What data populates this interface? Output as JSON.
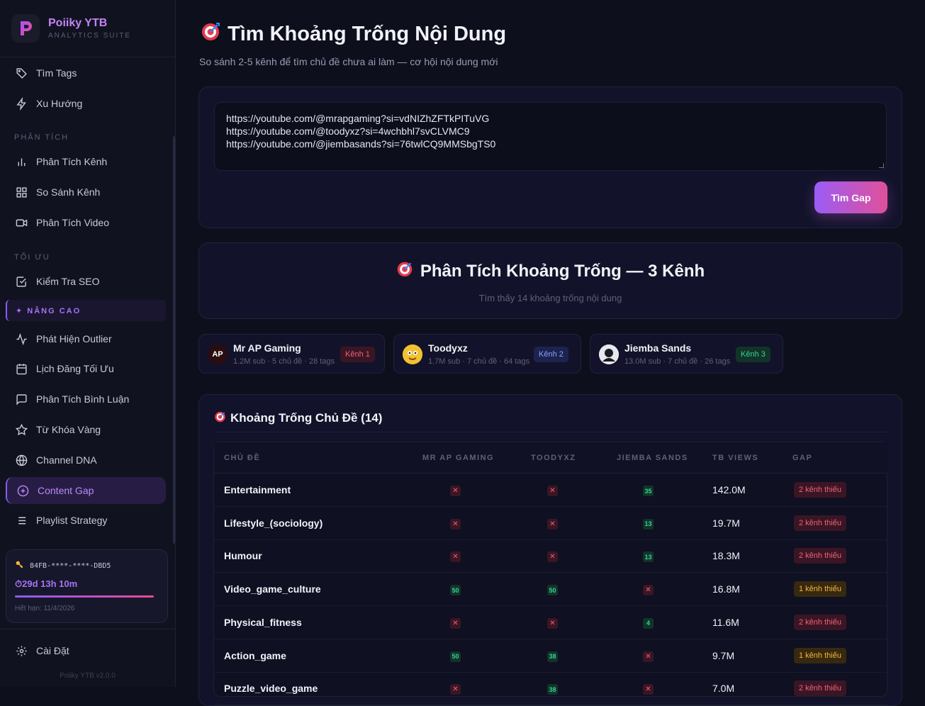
{
  "brand": {
    "name": "Poiiky YTB",
    "subtitle": "ANALYTICS SUITE"
  },
  "sidebar": {
    "top_items": [
      {
        "label": "Tìm Tags",
        "icon": "tag-icon"
      },
      {
        "label": "Xu Hướng",
        "icon": "lightning-icon"
      }
    ],
    "sections": {
      "analysis": "PHÂN TÍCH",
      "optimize": "TỐI ƯU",
      "advanced": "✦ NÂNG CAO"
    },
    "analysis_items": [
      {
        "label": "Phân Tích Kênh",
        "icon": "bar-chart-icon"
      },
      {
        "label": "So Sánh Kênh",
        "icon": "grid-icon"
      },
      {
        "label": "Phân Tích Video",
        "icon": "video-icon"
      }
    ],
    "optimize_items": [
      {
        "label": "Kiểm Tra SEO",
        "icon": "checkbox-icon"
      }
    ],
    "advanced_items": [
      {
        "label": "Phát Hiện Outlier",
        "icon": "activity-icon"
      },
      {
        "label": "Lịch Đăng Tối Ưu",
        "icon": "calendar-icon"
      },
      {
        "label": "Phân Tích Bình Luận",
        "icon": "comment-icon"
      },
      {
        "label": "Từ Khóa Vàng",
        "icon": "star-icon"
      },
      {
        "label": "Channel DNA",
        "icon": "globe-icon"
      },
      {
        "label": "Content Gap",
        "icon": "plus-circle-icon",
        "active": true
      },
      {
        "label": "Playlist Strategy",
        "icon": "list-icon"
      }
    ],
    "license": {
      "key": "84FB-****-****-DBD5",
      "time_left": "⏱29d 13h 10m",
      "expiry": "Hết hạn: 11/4/2026"
    },
    "settings_label": "Cài Đặt",
    "version": "Poiiky YTB v2.0.0"
  },
  "page": {
    "title": "Tìm Khoảng Trống Nội Dung",
    "subtitle": "So sánh 2-5 kênh để tìm chủ đề chưa ai làm — cơ hội nội dung mới"
  },
  "input": {
    "urls": [
      "https://youtube.com/@mrapgaming?si=vdNIZhZFTkPITuVG",
      "https://youtube.com/@toodyxz?si=4wchbhl7svCLVMC9",
      "https://youtube.com/@jiembasands?si=76twlCQ9MMSbgTS0"
    ],
    "button_label": "Tìm Gap"
  },
  "analysis": {
    "title": "Phân Tích Khoảng Trống — 3 Kênh",
    "subtitle": "Tìm thấy 14 khoảng trống nội dung"
  },
  "channels": [
    {
      "name": "Mr AP Gaming",
      "meta": "1.2M sub · 5 chủ đề · 28 tags",
      "badge": "Kênh 1",
      "avatar_text": "AP"
    },
    {
      "name": "Toodyxz",
      "meta": "1.7M sub · 7 chủ đề · 64 tags",
      "badge": "Kênh 2"
    },
    {
      "name": "Jiemba Sands",
      "meta": "13.0M sub · 7 chủ đề · 26 tags",
      "badge": "Kênh 3"
    }
  ],
  "gap_table": {
    "title": "Khoảng Trống Chủ Đề (14)",
    "columns": [
      "CHỦ ĐỀ",
      "MR AP GAMING",
      "TOODYXZ",
      "JIEMBA SANDS",
      "TB VIEWS",
      "GAP"
    ],
    "rows": [
      {
        "topic": "Entertainment",
        "c1": "✕",
        "c2": "✕",
        "c3": "35",
        "views": "142.0M",
        "gap": "2 kênh thiếu",
        "level": 2
      },
      {
        "topic": "Lifestyle_(sociology)",
        "c1": "✕",
        "c2": "✕",
        "c3": "13",
        "views": "19.7M",
        "gap": "2 kênh thiếu",
        "level": 2
      },
      {
        "topic": "Humour",
        "c1": "✕",
        "c2": "✕",
        "c3": "13",
        "views": "18.3M",
        "gap": "2 kênh thiếu",
        "level": 2
      },
      {
        "topic": "Video_game_culture",
        "c1": "50",
        "c2": "50",
        "c3": "✕",
        "views": "16.8M",
        "gap": "1 kênh thiếu",
        "level": 1
      },
      {
        "topic": "Physical_fitness",
        "c1": "✕",
        "c2": "✕",
        "c3": "4",
        "views": "11.6M",
        "gap": "2 kênh thiếu",
        "level": 2
      },
      {
        "topic": "Action_game",
        "c1": "50",
        "c2": "38",
        "c3": "✕",
        "views": "9.7M",
        "gap": "1 kênh thiếu",
        "level": 1
      },
      {
        "topic": "Puzzle_video_game",
        "c1": "✕",
        "c2": "38",
        "c3": "✕",
        "views": "7.0M",
        "gap": "2 kênh thiếu",
        "level": 2
      }
    ]
  },
  "colors": {
    "accent": "#8b5cf6",
    "accent_pink": "#ec4899",
    "missing": "#f0607a",
    "present": "#34d399",
    "warn": "#f5b53d"
  }
}
